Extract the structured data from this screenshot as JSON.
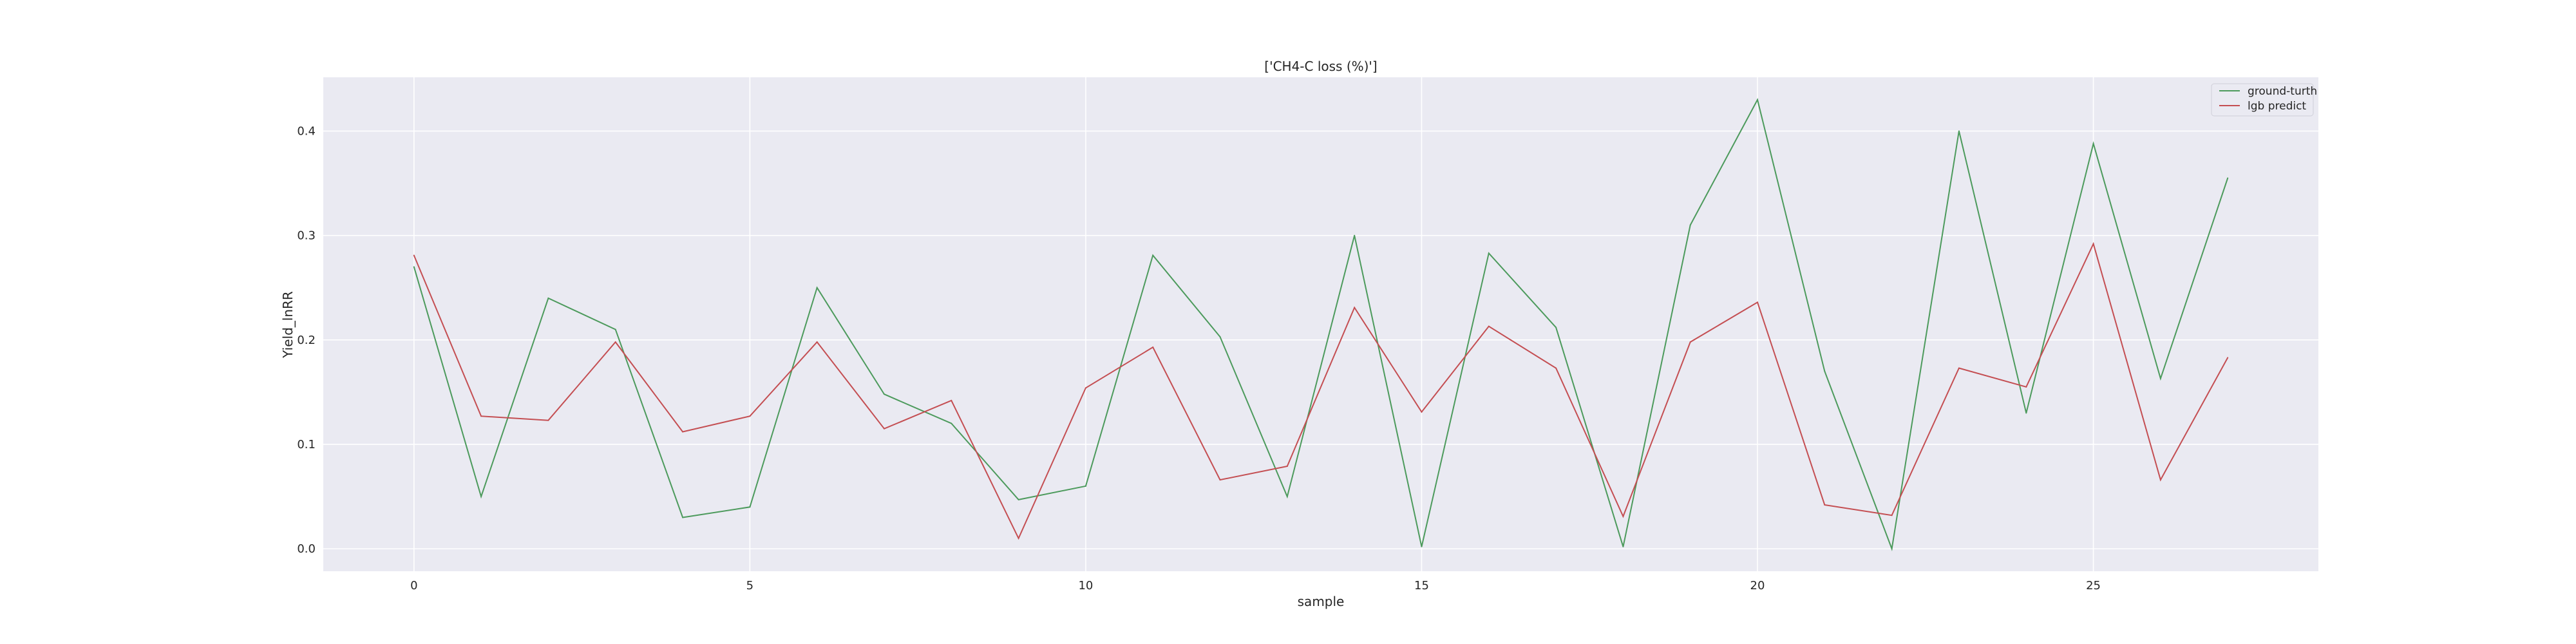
{
  "chart_data": {
    "type": "line",
    "title": "['CH4-C loss (%)']",
    "xlabel": "sample",
    "ylabel": "Yield_lnRR",
    "x": [
      0,
      1,
      2,
      3,
      4,
      5,
      6,
      7,
      8,
      9,
      10,
      11,
      12,
      13,
      14,
      15,
      16,
      17,
      18,
      19,
      20,
      21,
      22,
      23,
      24,
      25,
      26,
      27
    ],
    "xlim": [
      -1.35,
      28.35
    ],
    "ylim": [
      -0.0215,
      0.4515
    ],
    "xticks": [
      0,
      5,
      10,
      15,
      20,
      25
    ],
    "yticks": [
      0.0,
      0.1,
      0.2,
      0.3,
      0.4
    ],
    "ytick_labels": [
      "0.0",
      "0.1",
      "0.2",
      "0.3",
      "0.4"
    ],
    "grid": true,
    "legend_position": "top-right",
    "background_color": "#eaeaf2",
    "series": [
      {
        "name": "ground-turth",
        "color": "#4c9a5c",
        "values": [
          0.27,
          0.05,
          0.24,
          0.21,
          0.03,
          0.04,
          0.25,
          0.148,
          0.12,
          0.047,
          0.06,
          0.281,
          0.203,
          0.05,
          0.3,
          0.002,
          0.283,
          0.212,
          0.002,
          0.31,
          0.43,
          0.17,
          0.0,
          0.4,
          0.13,
          0.388,
          0.163,
          0.355
        ]
      },
      {
        "name": "lgb predict",
        "color": "#c44e52",
        "values": [
          0.281,
          0.127,
          0.123,
          0.198,
          0.112,
          0.127,
          0.198,
          0.115,
          0.142,
          0.01,
          0.154,
          0.193,
          0.066,
          0.079,
          0.231,
          0.131,
          0.213,
          0.173,
          0.031,
          0.198,
          0.236,
          0.042,
          0.032,
          0.173,
          0.155,
          0.292,
          0.066,
          0.183
        ]
      }
    ]
  }
}
